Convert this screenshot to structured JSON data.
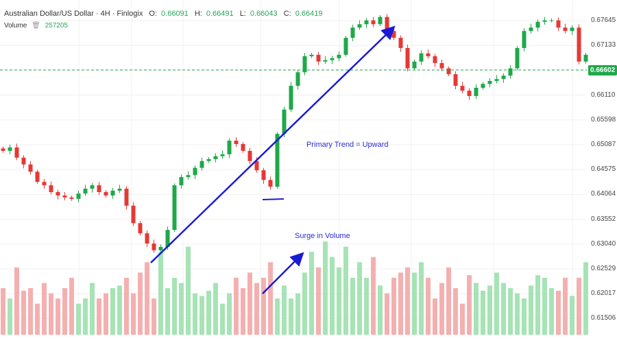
{
  "header": {
    "title": "Australian Dollar/US Dollar · 4H · Finlogix",
    "o_label": "O:",
    "o": "0.66091",
    "h_label": "H:",
    "h": "0.66491",
    "l_label": "L:",
    "l": "0.66043",
    "c_label": "C:",
    "c": "0.66419",
    "volume_label": "Volume",
    "volume": "257205"
  },
  "price_axis": [
    "0.67645",
    "0.67133",
    "0.66602",
    "0.66110",
    "0.65598",
    "0.65087",
    "0.64575",
    "0.64064",
    "0.63552",
    "0.63040",
    "0.62529",
    "0.62017",
    "0.61506"
  ],
  "current_price": "0.66602",
  "annotations": {
    "trend": "Primary Trend = Upward",
    "volume": "Surge in Volume"
  },
  "colors": {
    "up": "#1fa84a",
    "down": "#e53935",
    "up_vol": "#a6e3b5",
    "down_vol": "#f4b0b0",
    "arrow": "#1a1ad6"
  },
  "closes": [
    0.6496,
    0.6503,
    0.6482,
    0.6468,
    0.6453,
    0.6432,
    0.6425,
    0.6411,
    0.6404,
    0.64,
    0.6397,
    0.6408,
    0.6418,
    0.6425,
    0.6411,
    0.6404,
    0.6414,
    0.6418,
    0.6383,
    0.6347,
    0.6326,
    0.6305,
    0.6291,
    0.6298,
    0.6333,
    0.6425,
    0.6442,
    0.6446,
    0.6461,
    0.6475,
    0.6479,
    0.6485,
    0.6489,
    0.6517,
    0.651,
    0.6496,
    0.6475,
    0.6456,
    0.6436,
    0.6422,
    0.6531,
    0.6581,
    0.663,
    0.6658,
    0.6691,
    0.6694,
    0.668,
    0.6683,
    0.6687,
    0.6694,
    0.6729,
    0.675,
    0.6757,
    0.6765,
    0.6757,
    0.6772,
    0.6743,
    0.6729,
    0.6708,
    0.6666,
    0.668,
    0.6697,
    0.6691,
    0.6677,
    0.6666,
    0.6654,
    0.663,
    0.662,
    0.6609,
    0.6626,
    0.6634,
    0.664,
    0.6644,
    0.6651,
    0.6666,
    0.6708,
    0.6743,
    0.675,
    0.6762,
    0.6765,
    0.6765,
    0.675,
    0.6743,
    0.675,
    0.668,
    0.6694
  ],
  "volumes": [
    90,
    70,
    130,
    85,
    90,
    60,
    100,
    80,
    70,
    90,
    110,
    60,
    70,
    100,
    70,
    80,
    90,
    95,
    110,
    80,
    120,
    140,
    70,
    160,
    90,
    110,
    100,
    170,
    80,
    75,
    85,
    100,
    60,
    80,
    110,
    90,
    120,
    100,
    110,
    140,
    70,
    95,
    70,
    80,
    120,
    160,
    130,
    180,
    150,
    130,
    170,
    110,
    140,
    110,
    150,
    95,
    80,
    110,
    120,
    130,
    120,
    140,
    110,
    70,
    100,
    130,
    90,
    60,
    115,
    100,
    85,
    95,
    120,
    100,
    90,
    80,
    70,
    95,
    115,
    110,
    90,
    85,
    110,
    75,
    110,
    140
  ]
}
